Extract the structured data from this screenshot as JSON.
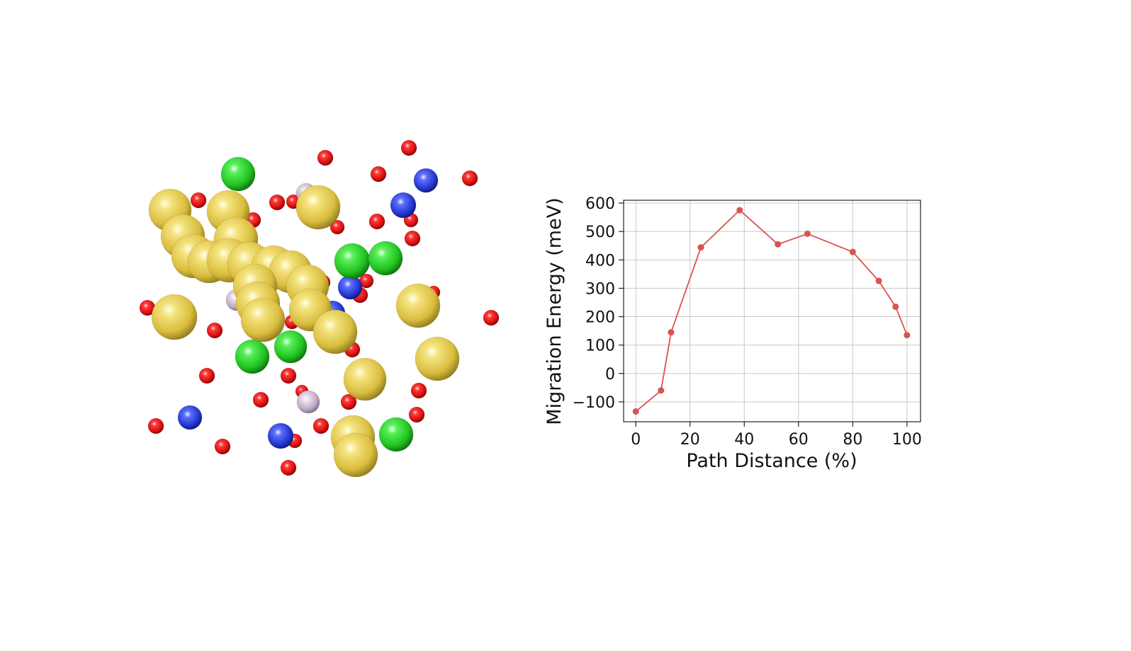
{
  "chart_data": {
    "type": "line",
    "xlabel": "Path Distance (%)",
    "ylabel": "Migration Energy (meV)",
    "xlim": [
      -4.5,
      105
    ],
    "ylim": [
      -170,
      610
    ],
    "xticks": [
      0,
      20,
      40,
      60,
      80,
      100
    ],
    "yticks": [
      -100,
      0,
      100,
      200,
      300,
      400,
      500,
      600
    ],
    "xtick_labels": [
      "0",
      "20",
      "40",
      "60",
      "80",
      "100"
    ],
    "ytick_labels": [
      "−100",
      "0",
      "100",
      "200",
      "300",
      "400",
      "500",
      "600"
    ],
    "grid": true,
    "series": [
      {
        "color": "#d9534f",
        "x": [
          0,
          9.3,
          13,
          24,
          38.3,
          52.4,
          63.3,
          80,
          89.6,
          95.8,
          100
        ],
        "values": [
          -134,
          -60,
          145,
          444,
          575,
          455,
          492,
          428,
          326,
          235,
          135
        ]
      }
    ]
  },
  "structure": {
    "atom_colors": {
      "gold": "#e8cf4e",
      "green": "#25d125",
      "blue": "#2b3fd6",
      "red": "#e01010",
      "lavender": "#c9b6cf"
    }
  }
}
